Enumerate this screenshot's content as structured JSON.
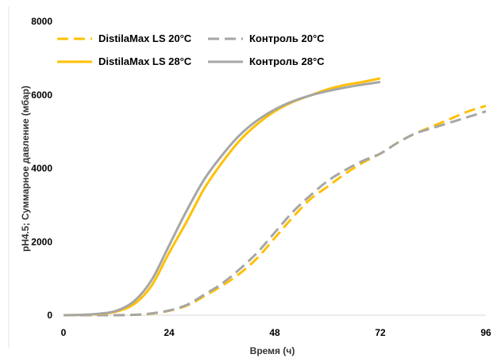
{
  "chart_data": {
    "type": "line",
    "xlabel": "Время (ч)",
    "ylabel": "pH4.5; Суммарное давление (мбар)",
    "xlim": [
      0,
      96
    ],
    "ylim": [
      0,
      8000
    ],
    "xticks": [
      0,
      24,
      48,
      72,
      96
    ],
    "yticks": [
      0,
      2000,
      4000,
      6000,
      8000
    ],
    "grid": false,
    "legend_position": "top-left",
    "series": [
      {
        "name": "DistilaMax LS 20°C",
        "color": "#FFC000",
        "style": "dashed",
        "x": [
          0,
          10,
          16,
          20,
          24,
          28,
          32,
          36,
          40,
          44,
          48,
          52,
          56,
          60,
          64,
          68,
          72,
          76,
          80,
          84,
          88,
          92,
          96
        ],
        "y": [
          0,
          0,
          10,
          40,
          120,
          260,
          520,
          800,
          1130,
          1550,
          2100,
          2650,
          3150,
          3500,
          3850,
          4150,
          4400,
          4700,
          4950,
          5150,
          5350,
          5550,
          5700
        ]
      },
      {
        "name": "Контроль 20°C",
        "color": "#A6A6A6",
        "style": "dashed",
        "x": [
          0,
          10,
          16,
          20,
          24,
          28,
          32,
          36,
          40,
          44,
          48,
          52,
          56,
          60,
          64,
          68,
          72,
          76,
          80,
          84,
          88,
          92,
          96
        ],
        "y": [
          0,
          0,
          10,
          50,
          130,
          280,
          560,
          860,
          1250,
          1700,
          2250,
          2800,
          3250,
          3650,
          3950,
          4200,
          4400,
          4700,
          4950,
          5100,
          5250,
          5400,
          5550
        ]
      },
      {
        "name": "DistilaMax LS  28°C",
        "color": "#FFC000",
        "style": "solid",
        "x": [
          0,
          4,
          8,
          12,
          16,
          20,
          24,
          28,
          32,
          36,
          40,
          44,
          48,
          52,
          56,
          60,
          64,
          68,
          72
        ],
        "y": [
          0,
          10,
          30,
          100,
          300,
          800,
          1700,
          2550,
          3450,
          4150,
          4750,
          5200,
          5550,
          5800,
          5980,
          6150,
          6270,
          6350,
          6450
        ]
      },
      {
        "name": "Контроль 28°C",
        "color": "#A6A6A6",
        "style": "solid",
        "x": [
          0,
          4,
          8,
          12,
          16,
          20,
          24,
          28,
          32,
          36,
          40,
          44,
          48,
          52,
          56,
          60,
          64,
          68,
          72
        ],
        "y": [
          0,
          10,
          40,
          120,
          380,
          950,
          1900,
          2850,
          3700,
          4350,
          4900,
          5300,
          5600,
          5820,
          5980,
          6100,
          6200,
          6280,
          6350
        ]
      }
    ]
  }
}
